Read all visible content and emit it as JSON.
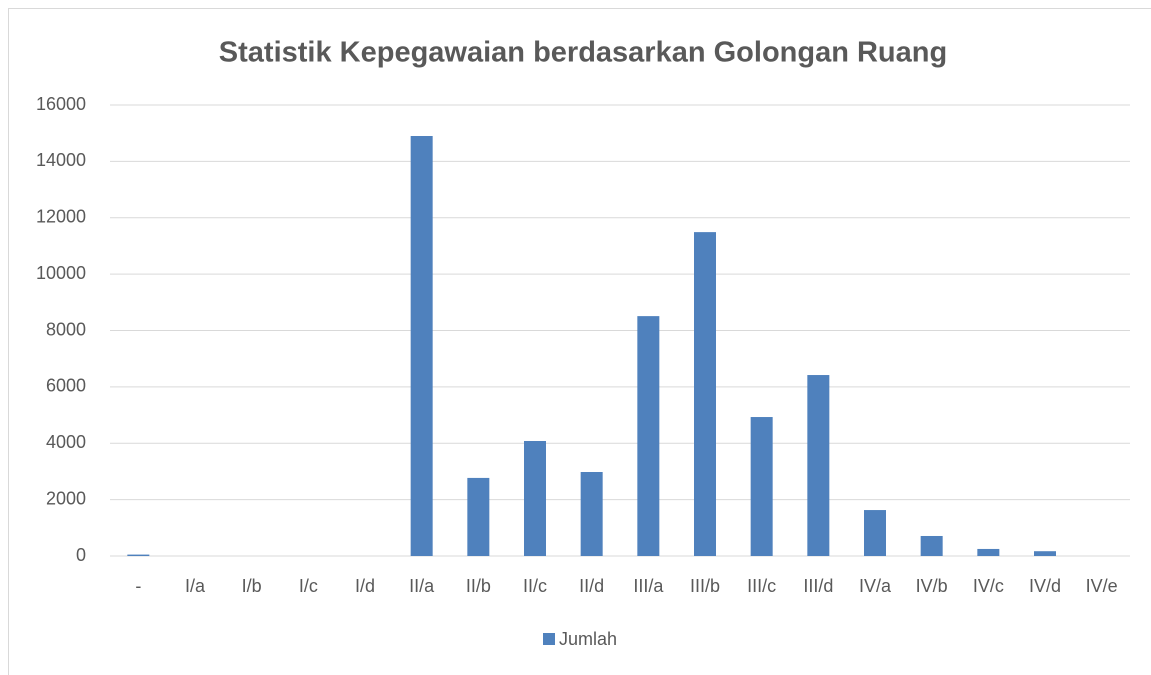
{
  "chart_data": {
    "type": "bar",
    "title": "Statistik Kepegawaian berdasarkan Golongan Ruang",
    "categories": [
      "-",
      "I/a",
      "I/b",
      "I/c",
      "I/d",
      "II/a",
      "II/b",
      "II/c",
      "II/d",
      "III/a",
      "III/b",
      "III/c",
      "III/d",
      "IV/a",
      "IV/b",
      "IV/c",
      "IV/d",
      "IV/e"
    ],
    "series": [
      {
        "name": "Jumlah",
        "color": "#4f81bd",
        "values": [
          50,
          0,
          0,
          0,
          0,
          14900,
          2770,
          4080,
          2980,
          8510,
          11490,
          4930,
          6420,
          1630,
          710,
          250,
          170,
          0
        ]
      }
    ],
    "ylim": [
      0,
      16000
    ],
    "yticks": [
      0,
      2000,
      4000,
      6000,
      8000,
      10000,
      12000,
      14000,
      16000
    ],
    "grid": true,
    "legend": "bottom"
  }
}
